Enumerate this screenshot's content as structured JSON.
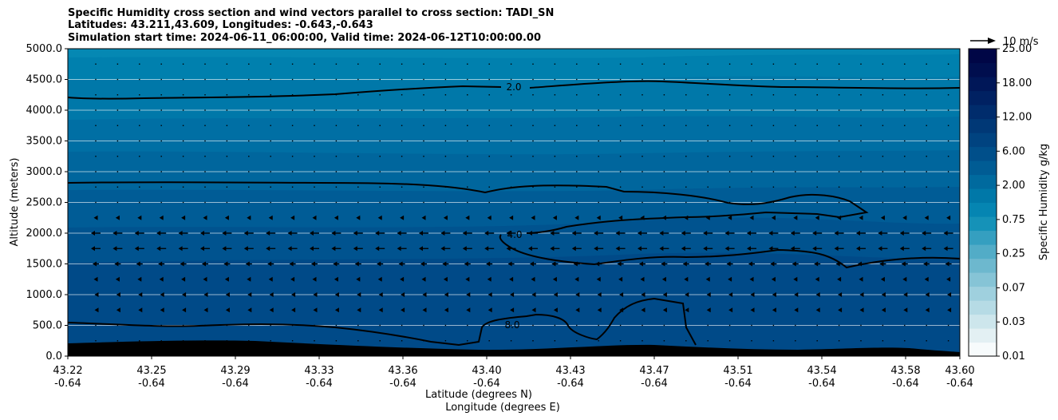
{
  "chart_data": {
    "type": "contour_cross_section",
    "title_lines": [
      "Specific Humidity cross section and wind vectors parallel to cross section: TADI_SN",
      "Latitudes: 43.211,43.609, Longitudes: -0.643,-0.643",
      "Simulation start time: 2024-06-11_06:00:00, Valid time: 2024-06-12T10:00:00.00"
    ],
    "xlabel_lat": "Latitude (degrees N)",
    "xlabel_lon": "Longitude (degrees E)",
    "ylabel": "Altitude (meters)",
    "xlim": [
      43.211,
      43.609
    ],
    "ylim": [
      0,
      5000
    ],
    "x_ticks": [
      {
        "lat": "43.22",
        "lon": "-0.64"
      },
      {
        "lat": "43.25",
        "lon": "-0.64"
      },
      {
        "lat": "43.29",
        "lon": "-0.64"
      },
      {
        "lat": "43.33",
        "lon": "-0.64"
      },
      {
        "lat": "43.36",
        "lon": "-0.64"
      },
      {
        "lat": "43.40",
        "lon": "-0.64"
      },
      {
        "lat": "43.43",
        "lon": "-0.64"
      },
      {
        "lat": "43.47",
        "lon": "-0.64"
      },
      {
        "lat": "43.51",
        "lon": "-0.64"
      },
      {
        "lat": "43.54",
        "lon": "-0.64"
      },
      {
        "lat": "43.58",
        "lon": "-0.64"
      },
      {
        "lat": "43.60",
        "lon": "-0.64"
      }
    ],
    "y_ticks": [
      "0.0",
      "500.0",
      "1000.0",
      "1500.0",
      "2000.0",
      "2500.0",
      "3000.0",
      "3500.0",
      "4000.0",
      "4500.0",
      "5000.0"
    ],
    "grid": "horizontal",
    "colorbar": {
      "label": "Specific Humidity g/kg",
      "tick_labels": [
        "0.01",
        "0.03",
        "0.07",
        "0.25",
        "0.75",
        "2.00",
        "6.00",
        "12.00",
        "18.00",
        "25.00"
      ],
      "colors": [
        "#f7fbfc",
        "#e3f0f3",
        "#cde6ec",
        "#b6dbe5",
        "#9fd0de",
        "#86c4d6",
        "#6db8ce",
        "#52acc7",
        "#359fc0",
        "#1592b8",
        "#0585b2",
        "#0078a8",
        "#006a9e",
        "#005c94",
        "#004f8a",
        "#004380",
        "#003876",
        "#002c6c",
        "#002162",
        "#001758",
        "#000e4e",
        "#000646"
      ]
    },
    "contour_labels": [
      "2.0",
      "4.0",
      "8.0"
    ],
    "wind_reference": "10 m/s",
    "terrain_color": "#000000"
  }
}
